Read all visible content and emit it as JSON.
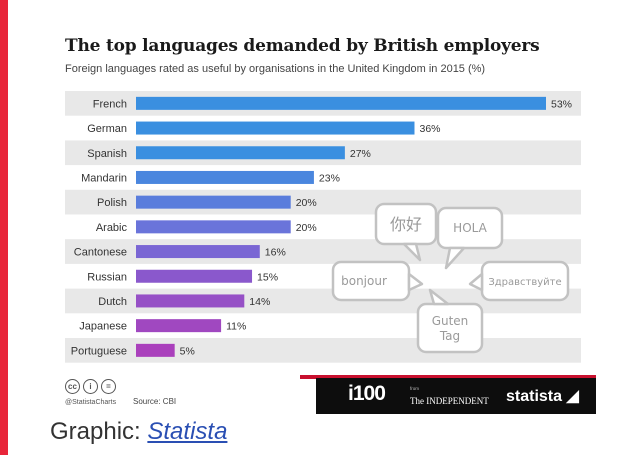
{
  "chart_data": {
    "type": "bar",
    "orientation": "horizontal",
    "title": "The top languages demanded by British employers",
    "subtitle": "Foreign languages rated as useful by organisations in the United Kingdom in 2015 (%)",
    "categories": [
      "French",
      "German",
      "Spanish",
      "Mandarin",
      "Polish",
      "Arabic",
      "Cantonese",
      "Russian",
      "Dutch",
      "Japanese",
      "Portuguese"
    ],
    "values": [
      53,
      36,
      27,
      23,
      20,
      20,
      16,
      15,
      14,
      11,
      5
    ],
    "value_labels": [
      "53%",
      "36%",
      "27%",
      "23%",
      "20%",
      "20%",
      "16%",
      "15%",
      "14%",
      "11%",
      "5%"
    ],
    "xlim": [
      0,
      53
    ],
    "bar_colors": [
      "#3a8fe0",
      "#3a8fe0",
      "#3a8fe0",
      "#4a86de",
      "#5a7ddc",
      "#6a74da",
      "#7a66d4",
      "#8a58cc",
      "#9650c6",
      "#a048c0",
      "#aa40bc"
    ],
    "greetings": [
      "你好",
      "HOLA",
      "bonjour",
      "Здравствуйте",
      "Guten Tag"
    ]
  },
  "footer": {
    "handle": "@StatistaCharts",
    "source": "Source: CBI",
    "i100": "i100",
    "from_label": "from",
    "independent": "The INDEPENDENT",
    "brand": "statista"
  },
  "caption": {
    "prefix": "Graphic: ",
    "link": "Statista"
  },
  "colors": {
    "accent_red": "#e8263a",
    "row_band": "#e8e8e8"
  }
}
